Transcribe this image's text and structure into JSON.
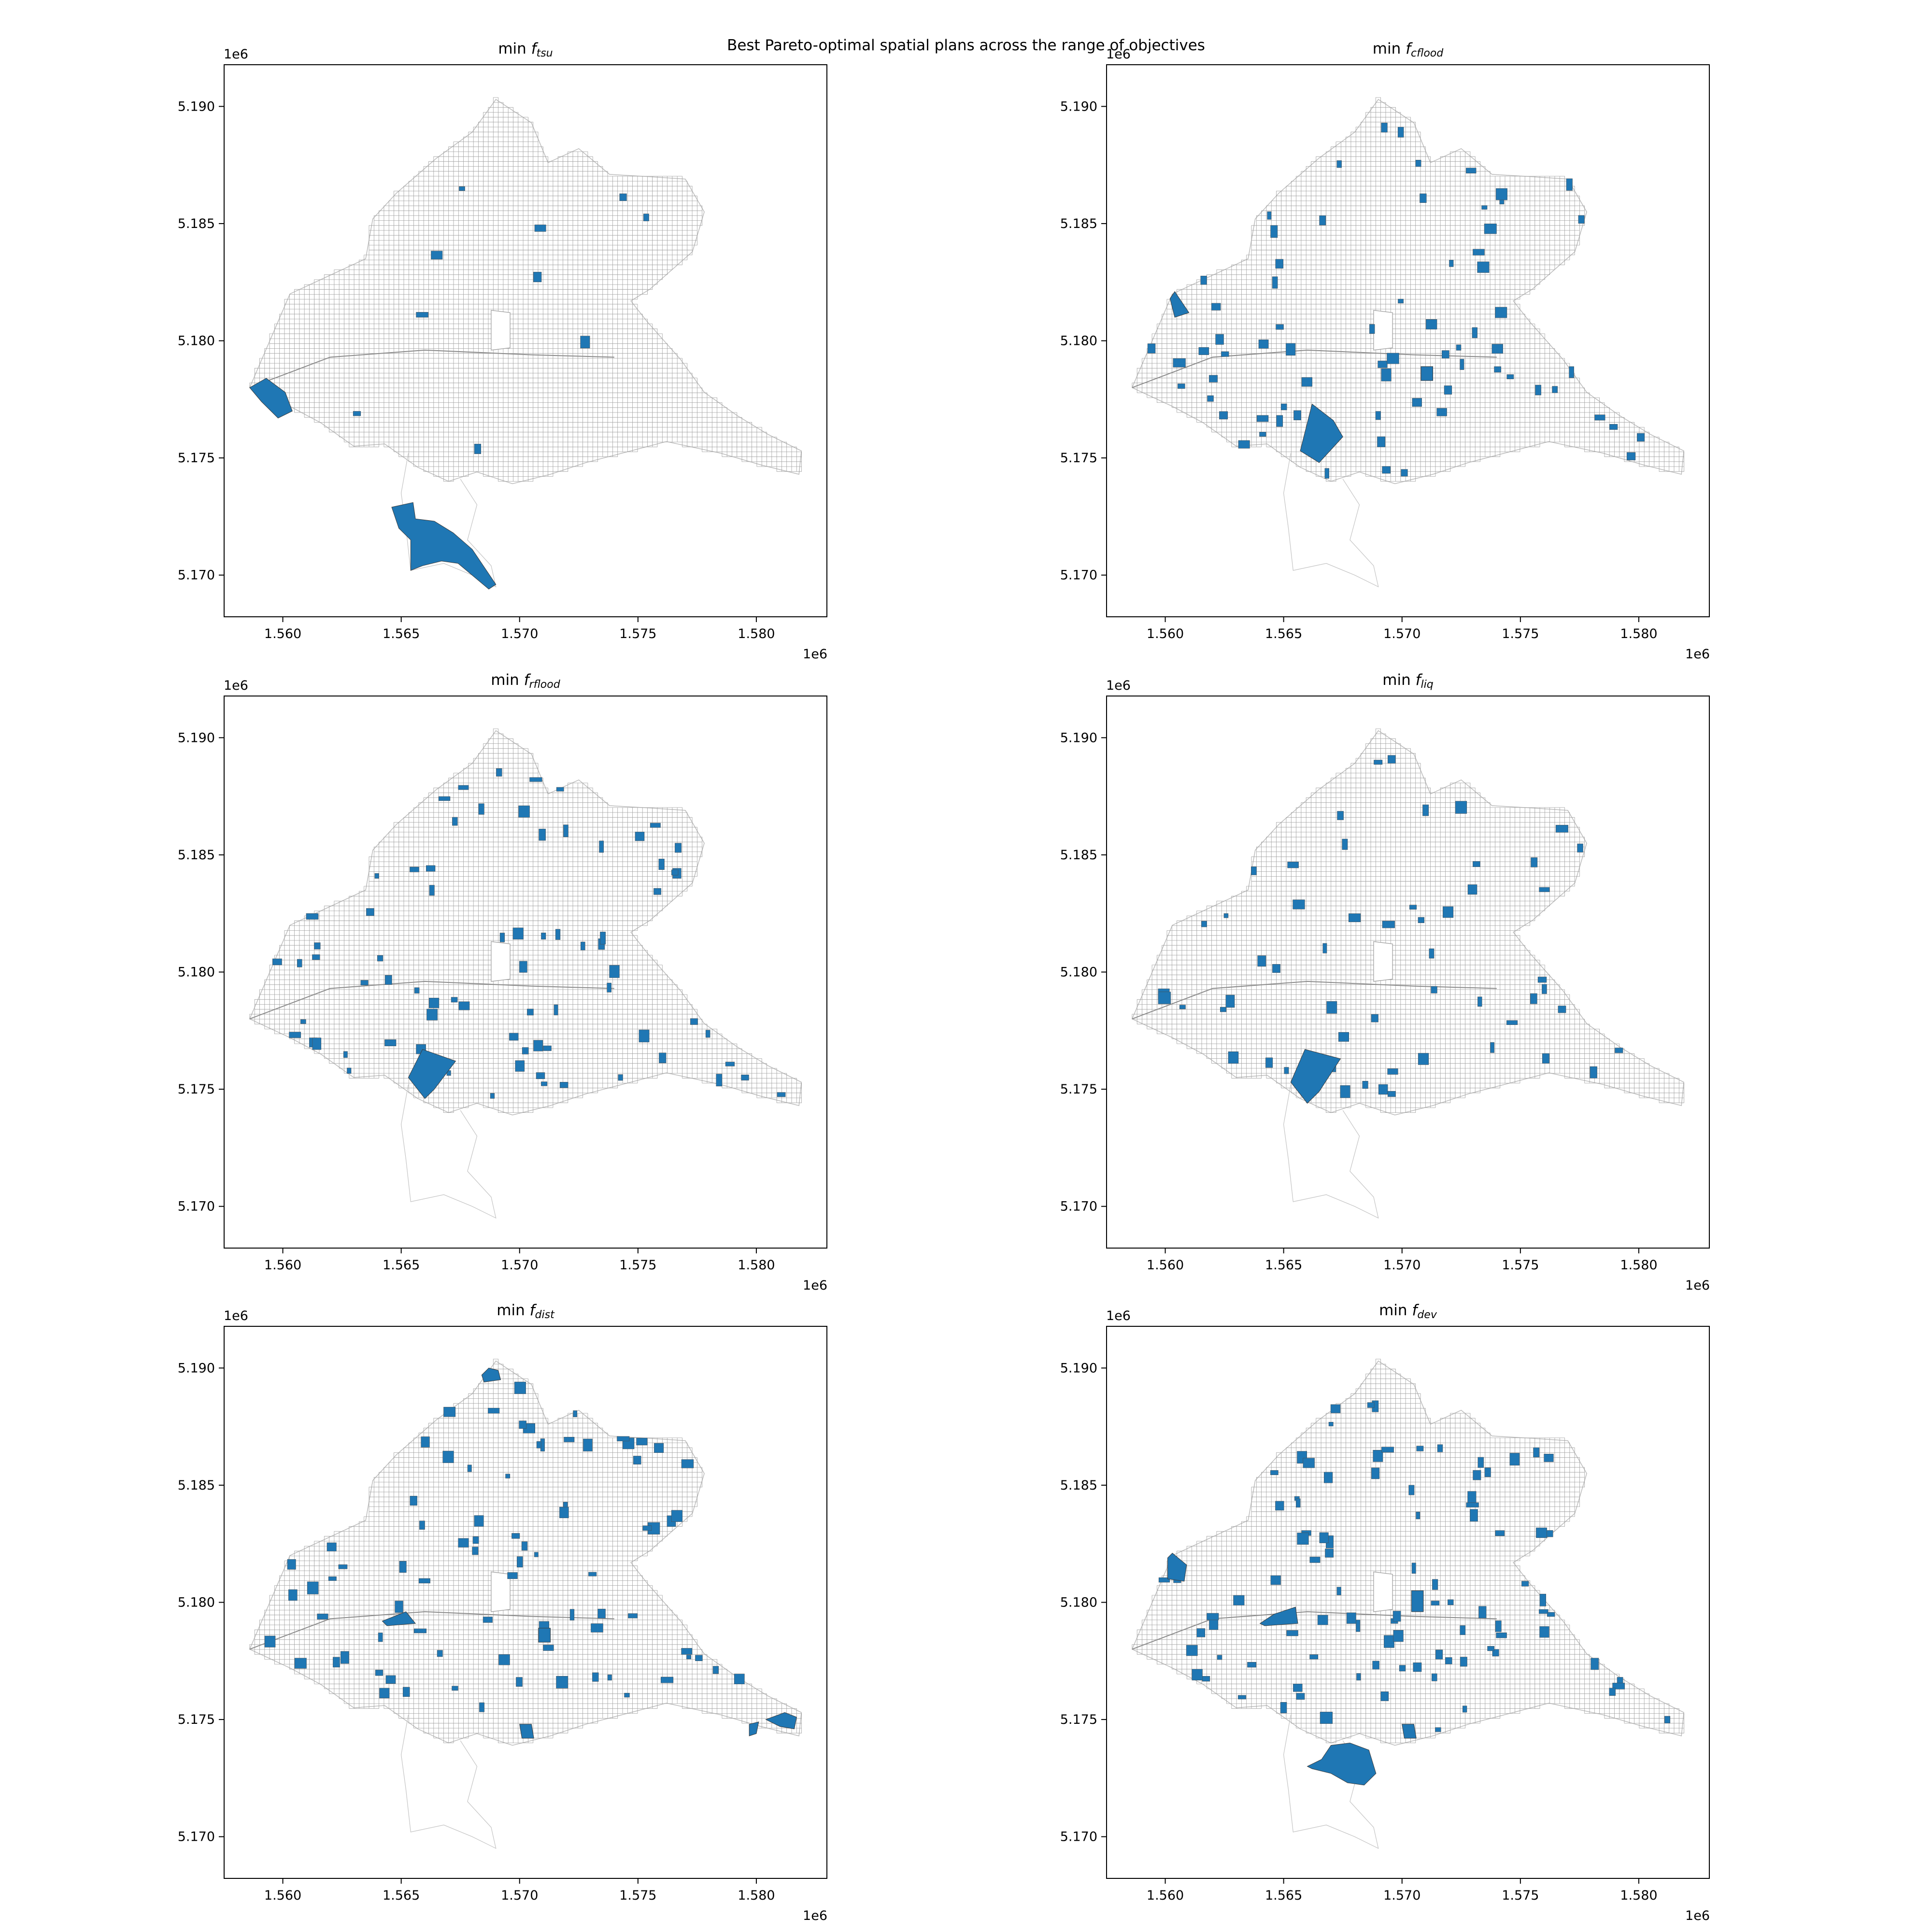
{
  "figure": {
    "suptitle": "Best Pareto-optimal spatial plans across the range of objectives"
  },
  "axes_common": {
    "x_ticks": [
      "1.560",
      "1.565",
      "1.570",
      "1.575",
      "1.580"
    ],
    "y_ticks": [
      "5.190",
      "5.185",
      "5.180",
      "5.175",
      "5.170"
    ],
    "x_offset": "1e6",
    "y_offset": "1e6",
    "xlim": [
      1557500,
      1583000
    ],
    "ylim": [
      5168200,
      5191800
    ]
  },
  "colors": {
    "selected_fill": "#1f77b4",
    "parcel_edge": "#a0a0a0"
  },
  "panels": [
    {
      "id": "tsu",
      "title_prefix": "min ",
      "title_f": "f",
      "title_sub": "tsu"
    },
    {
      "id": "cflood",
      "title_prefix": "min ",
      "title_f": "f",
      "title_sub": "cflood"
    },
    {
      "id": "rflood",
      "title_prefix": "min ",
      "title_f": "f",
      "title_sub": "rflood"
    },
    {
      "id": "liq",
      "title_prefix": "min ",
      "title_f": "f",
      "title_sub": "liq"
    },
    {
      "id": "dist",
      "title_prefix": "min ",
      "title_f": "f",
      "title_sub": "dist"
    },
    {
      "id": "dev",
      "title_prefix": "min ",
      "title_f": "f",
      "title_sub": "dev"
    }
  ]
}
